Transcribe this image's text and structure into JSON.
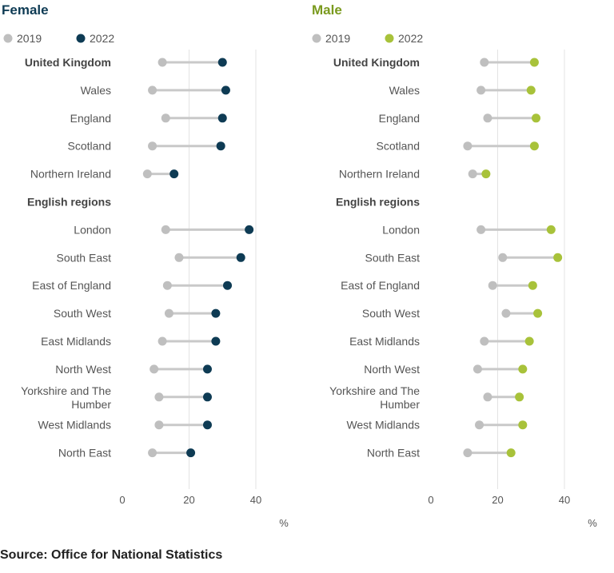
{
  "chart_data": [
    {
      "type": "dumbbell",
      "title": "Female",
      "title_color": "#0e3b54",
      "legend": [
        {
          "name": "2019",
          "color": "#bfbfbf"
        },
        {
          "name": "2022",
          "color": "#0e3b54"
        }
      ],
      "xlabel": "%",
      "xlim": [
        0,
        40
      ],
      "xticks": [
        0,
        20,
        40
      ],
      "rows": [
        {
          "label": "United Kingdom",
          "header": true,
          "v2019": 12,
          "v2022": 30
        },
        {
          "label": "Wales",
          "v2019": 9,
          "v2022": 31
        },
        {
          "label": "England",
          "v2019": 13,
          "v2022": 30
        },
        {
          "label": "Scotland",
          "v2019": 9,
          "v2022": 29.5
        },
        {
          "label": "Northern Ireland",
          "v2019": 7.5,
          "v2022": 15.5
        },
        {
          "label": "English regions",
          "header": true
        },
        {
          "label": "London",
          "v2019": 13,
          "v2022": 38
        },
        {
          "label": "South East",
          "v2019": 17,
          "v2022": 35.5
        },
        {
          "label": "East of England",
          "v2019": 13.5,
          "v2022": 31.5
        },
        {
          "label": "South West",
          "v2019": 14,
          "v2022": 28
        },
        {
          "label": "East Midlands",
          "v2019": 12,
          "v2022": 28
        },
        {
          "label": "North West",
          "v2019": 9.5,
          "v2022": 25.5
        },
        {
          "label": "Yorkshire and The Humber",
          "v2019": 11,
          "v2022": 25.5
        },
        {
          "label": "West Midlands",
          "v2019": 11,
          "v2022": 25.5
        },
        {
          "label": "North East",
          "v2019": 9,
          "v2022": 20.5
        }
      ]
    },
    {
      "type": "dumbbell",
      "title": "Male",
      "title_color": "#7a9a1e",
      "legend": [
        {
          "name": "2019",
          "color": "#bfbfbf"
        },
        {
          "name": "2022",
          "color": "#a8c23a"
        }
      ],
      "xlabel": "%",
      "xlim": [
        0,
        40
      ],
      "xticks": [
        0,
        20,
        40
      ],
      "rows": [
        {
          "label": "United Kingdom",
          "header": true,
          "v2019": 16,
          "v2022": 31
        },
        {
          "label": "Wales",
          "v2019": 15,
          "v2022": 30
        },
        {
          "label": "England",
          "v2019": 17,
          "v2022": 31.5
        },
        {
          "label": "Scotland",
          "v2019": 11,
          "v2022": 31
        },
        {
          "label": "Northern Ireland",
          "v2019": 12.5,
          "v2022": 16.5
        },
        {
          "label": "English regions",
          "header": true
        },
        {
          "label": "London",
          "v2019": 15,
          "v2022": 36
        },
        {
          "label": "South East",
          "v2019": 21.5,
          "v2022": 38
        },
        {
          "label": "East of England",
          "v2019": 18.5,
          "v2022": 30.5
        },
        {
          "label": "South West",
          "v2019": 22.5,
          "v2022": 32
        },
        {
          "label": "East Midlands",
          "v2019": 16,
          "v2022": 29.5
        },
        {
          "label": "North West",
          "v2019": 14,
          "v2022": 27.5
        },
        {
          "label": "Yorkshire and The Humber",
          "v2019": 17,
          "v2022": 26.5
        },
        {
          "label": "West Midlands",
          "v2019": 14.5,
          "v2022": 27.5
        },
        {
          "label": "North East",
          "v2019": 11,
          "v2022": 24
        }
      ]
    }
  ],
  "source": "Source: Office for National Statistics"
}
